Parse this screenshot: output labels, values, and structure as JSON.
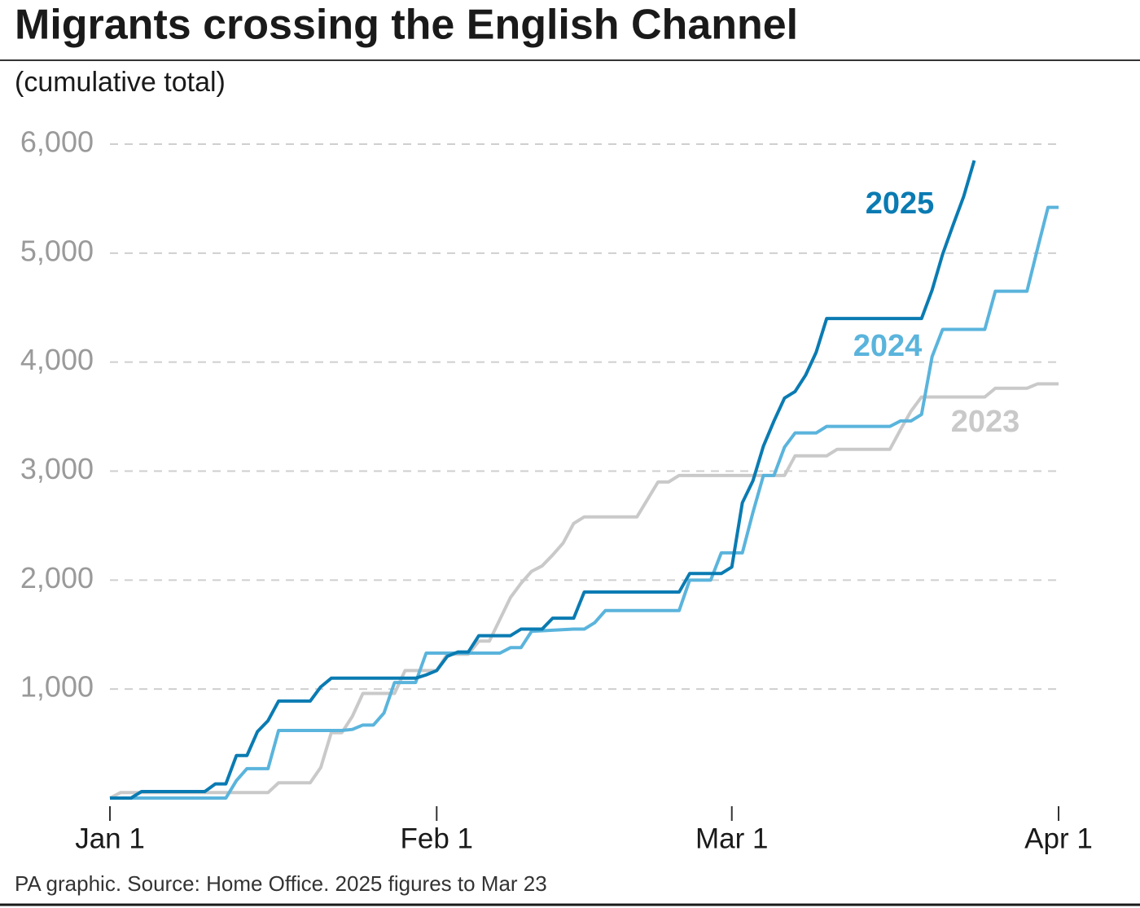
{
  "chart_data": {
    "type": "line",
    "title": "Migrants crossing the English Channel",
    "subtitle": "(cumulative total)",
    "source": "PA graphic. Source: Home Office. 2025 figures to Mar 23",
    "xlim": [
      0,
      90
    ],
    "xticks": [
      {
        "value": 0,
        "label": "Jan 1"
      },
      {
        "value": 31,
        "label": "Feb 1"
      },
      {
        "value": 59,
        "label": "Mar 1"
      },
      {
        "value": 90,
        "label": "Apr 1"
      }
    ],
    "ylim": [
      0,
      6000
    ],
    "yticks": [
      {
        "value": 1000,
        "label": "1,000"
      },
      {
        "value": 2000,
        "label": "2,000"
      },
      {
        "value": 3000,
        "label": "3,000"
      },
      {
        "value": 4000,
        "label": "4,000"
      },
      {
        "value": 5000,
        "label": "5,000"
      },
      {
        "value": 6000,
        "label": "6,000"
      }
    ],
    "grid": true,
    "series": [
      {
        "name": "2023",
        "color": "#c9c9c9",
        "x": [
          0,
          1,
          15,
          16,
          19,
          20,
          21,
          22,
          23,
          24,
          27,
          28,
          31,
          32,
          34,
          35,
          36,
          37,
          38,
          39,
          40,
          41,
          42,
          43,
          44,
          45,
          50,
          51,
          52,
          53,
          54,
          64,
          65,
          68,
          69,
          74,
          75,
          76,
          77,
          83,
          84,
          87,
          88,
          90
        ],
        "values": [
          0,
          50,
          50,
          140,
          140,
          280,
          600,
          600,
          750,
          960,
          960,
          1170,
          1170,
          1320,
          1320,
          1440,
          1440,
          1640,
          1840,
          1970,
          2080,
          2130,
          2230,
          2340,
          2520,
          2580,
          2580,
          2740,
          2900,
          2900,
          2960,
          2960,
          3140,
          3140,
          3200,
          3200,
          3380,
          3550,
          3680,
          3680,
          3760,
          3760,
          3800,
          3800
        ]
      },
      {
        "name": "2024",
        "color": "#5ab4dc",
        "x": [
          0,
          11,
          12,
          13,
          15,
          16,
          22,
          23,
          24,
          25,
          26,
          27,
          29,
          30,
          37,
          38,
          39,
          40,
          44,
          45,
          46,
          47,
          54,
          55,
          57,
          58,
          60,
          61,
          62,
          63,
          64,
          65,
          67,
          68,
          74,
          75,
          76,
          77,
          78,
          79,
          83,
          84,
          87,
          88,
          89,
          90
        ],
        "values": [
          0,
          0,
          160,
          270,
          270,
          620,
          620,
          630,
          670,
          670,
          780,
          1060,
          1060,
          1330,
          1330,
          1380,
          1380,
          1530,
          1550,
          1550,
          1610,
          1720,
          1720,
          2000,
          2000,
          2250,
          2250,
          2620,
          2960,
          2960,
          3220,
          3350,
          3350,
          3410,
          3410,
          3460,
          3460,
          3520,
          4050,
          4300,
          4300,
          4650,
          4650,
          5040,
          5420,
          5420
        ]
      },
      {
        "name": "2025",
        "color": "#0a7bb2",
        "x": [
          0,
          2,
          3,
          9,
          10,
          11,
          12,
          13,
          14,
          15,
          16,
          19,
          20,
          21,
          29,
          30,
          31,
          32,
          33,
          34,
          35,
          38,
          39,
          41,
          42,
          44,
          45,
          54,
          55,
          58,
          59,
          60,
          61,
          62,
          63,
          64,
          65,
          66,
          67,
          68,
          77,
          78,
          79,
          80,
          81,
          82
        ],
        "values": [
          0,
          0,
          60,
          60,
          130,
          130,
          390,
          390,
          610,
          710,
          890,
          890,
          1020,
          1100,
          1100,
          1130,
          1170,
          1300,
          1340,
          1340,
          1490,
          1490,
          1550,
          1550,
          1650,
          1650,
          1890,
          1890,
          2060,
          2060,
          2120,
          2710,
          2910,
          3230,
          3460,
          3670,
          3730,
          3880,
          4090,
          4400,
          4400,
          4660,
          4990,
          5260,
          5520,
          5850
        ]
      }
    ]
  }
}
